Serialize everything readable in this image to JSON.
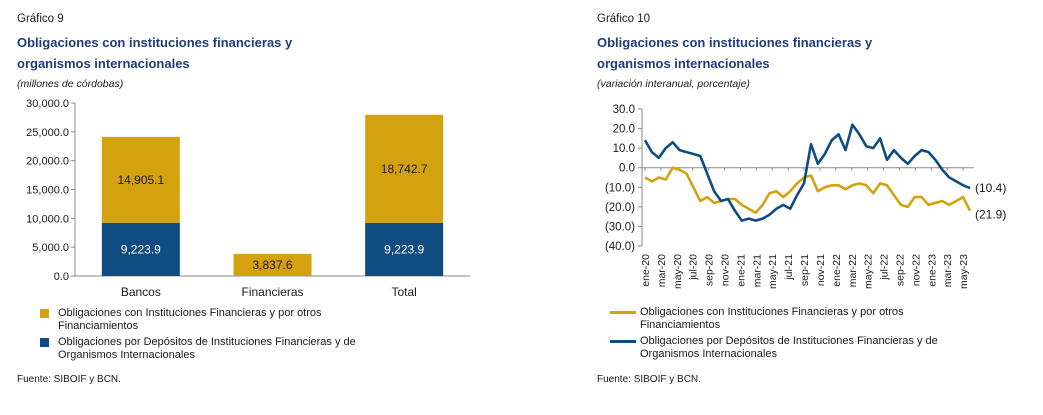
{
  "colors": {
    "gold": "#D4A20E",
    "navy": "#0F4C81",
    "title": "#1F3D7A"
  },
  "chart1": {
    "figure_label": "Gráfico 9",
    "title_line1": "Obligaciones con instituciones financieras y",
    "title_line2": "organismos internacionales",
    "subtitle": "(millones de córdobas)",
    "source": "Fuente: SIBOIF y BCN.",
    "legend": [
      {
        "line1": "Obligaciones con Instituciones Financieras y por otros",
        "line2": "Financiamientos"
      },
      {
        "line1": "Obligaciones por Depósitos de Instituciones Financieras y de",
        "line2": "Organismos Internacionales"
      }
    ]
  },
  "chart2": {
    "figure_label": "Gráfico 10",
    "title_line1": "Obligaciones con instituciones financieras y",
    "title_line2": "organismos internacionales",
    "subtitle": "(variación interanual, porcentaje)",
    "source": "Fuente: SIBOIF y BCN.",
    "legend": [
      {
        "line1": "Obligaciones con Instituciones Financieras y por otros",
        "line2": "Financiamientos"
      },
      {
        "line1": "Obligaciones por Depósitos de Instituciones Financieras y de",
        "line2": "Organismos Internacionales"
      }
    ],
    "end_labels": [
      "(10.4)",
      "(21.9)"
    ]
  },
  "chart_data": [
    {
      "type": "bar",
      "stacked": true,
      "categories": [
        "Bancos",
        "Financieras",
        "Total"
      ],
      "series": [
        {
          "name": "Obligaciones por Depósitos de Instituciones Financieras y de Organismos Internacionales",
          "values": [
            9223.9,
            0,
            9223.9
          ],
          "labels": [
            "9,223.9",
            "",
            "9,223.9"
          ],
          "color": "#0F4C81"
        },
        {
          "name": "Obligaciones con Instituciones Financieras y por otros Financiamientos",
          "values": [
            14905.1,
            3837.6,
            18742.7
          ],
          "labels": [
            "14,905.1",
            "3,837.6",
            "18,742.7"
          ],
          "color": "#D4A20E"
        }
      ],
      "ylim": [
        0,
        30000
      ],
      "yticks": [
        0,
        5000,
        10000,
        15000,
        20000,
        25000,
        30000
      ],
      "ytick_labels": [
        "0.0",
        "5,000.0",
        "10,000.0",
        "15,000.0",
        "20,000.0",
        "25,000.0",
        "30,000.0"
      ],
      "legend_position": "bottom"
    },
    {
      "type": "line",
      "ylim": [
        -40,
        30
      ],
      "yticks": [
        30,
        20,
        10,
        0,
        -10,
        -20,
        -30,
        -40
      ],
      "ytick_labels": [
        "30.0",
        "20.0",
        "10.0",
        "0.0",
        "(10.0)",
        "(20.0)",
        "(30.0)",
        "(40.0)"
      ],
      "x_tick_labels": [
        "ene-20",
        "mar-20",
        "may-20",
        "jul-20",
        "sep-20",
        "nov-20",
        "ene-21",
        "mar-21",
        "may-21",
        "jul-21",
        "sep-21",
        "nov-21",
        "ene-22",
        "mar-22",
        "may-22",
        "jul-22",
        "sep-22",
        "nov-22",
        "ene-23",
        "mar-23",
        "may-23"
      ],
      "series": [
        {
          "name": "Obligaciones con Instituciones Financieras y por otros Financiamientos",
          "color": "#D4A20E",
          "values": [
            -5,
            -7,
            -5,
            -6,
            0,
            -1,
            -3,
            -10,
            -17,
            -15,
            -18,
            -17,
            -16,
            -16,
            -19,
            -21,
            -23,
            -19,
            -13,
            -12,
            -15,
            -12,
            -8,
            -5,
            -4,
            -12,
            -10,
            -9,
            -9,
            -11,
            -9,
            -8,
            -9,
            -13,
            -8,
            -9,
            -14,
            -19,
            -20,
            -15,
            -15,
            -19,
            -18,
            -17,
            -19,
            -17,
            -15,
            -21.9
          ]
        },
        {
          "name": "Obligaciones por Depósitos de Instituciones Financieras y de Organismos Internacionales",
          "color": "#0F4C81",
          "values": [
            14,
            8,
            5,
            10,
            13,
            9,
            8,
            7,
            6,
            -3,
            -12,
            -17,
            -16,
            -22,
            -27,
            -26,
            -27,
            -26,
            -24,
            -21,
            -19,
            -21,
            -14,
            -8,
            12,
            2,
            7,
            14,
            17,
            9,
            22,
            17,
            11,
            10,
            15,
            4,
            9,
            5,
            2,
            6,
            9,
            8,
            4,
            -1,
            -5,
            -7,
            -9,
            -10.4
          ]
        }
      ],
      "legend_position": "bottom"
    }
  ]
}
